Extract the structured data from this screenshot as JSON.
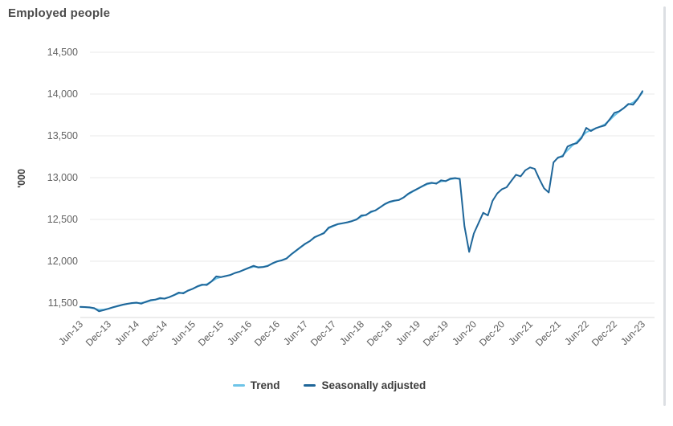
{
  "page": {
    "title": "Employed people"
  },
  "chart_data": {
    "type": "line",
    "title": "Employed people",
    "xlabel": "",
    "ylabel": "'000",
    "grid": true,
    "legend_position": "bottom",
    "frequency": "monthly",
    "x_start": "Jun-13",
    "x_end": "Jun-23",
    "ylim": [
      11250,
      14650
    ],
    "ytick_values": [
      11500,
      12000,
      12500,
      13000,
      13500,
      14000,
      14500
    ],
    "ytick_labels": [
      "11,500",
      "12,000",
      "12,500",
      "13,000",
      "13,500",
      "14,000",
      "14,500"
    ],
    "xtick_labels": [
      "Jun-13",
      "Dec-13",
      "Jun-14",
      "Dec-14",
      "Jun-15",
      "Dec-15",
      "Jun-16",
      "Dec-16",
      "Jun-17",
      "Dec-17",
      "Jun-18",
      "Dec-18",
      "Jun-19",
      "Dec-19",
      "Jun-20",
      "Dec-20",
      "Jun-21",
      "Dec-21",
      "Jun-22",
      "Dec-22",
      "Jun-23"
    ],
    "xtick_month_interval": 6,
    "series": [
      {
        "name": "Trend",
        "color": "#6ec4e8",
        "values": [
          11452,
          11449,
          11444,
          11434,
          11420,
          11422,
          11432,
          11447,
          11462,
          11477,
          11489,
          11497,
          11501,
          11502,
          11511,
          11527,
          11539,
          11551,
          11556,
          11571,
          11593,
          11614,
          11625,
          11646,
          11670,
          11695,
          11713,
          11726,
          11757,
          11792,
          11810,
          11823,
          11837,
          11859,
          11877,
          11897,
          11919,
          11934,
          11930,
          11933,
          11947,
          11972,
          11995,
          12013,
          12035,
          12080,
          12121,
          12164,
          12205,
          12241,
          12283,
          12311,
          12341,
          12393,
          12419,
          12441,
          12453,
          12465,
          12481,
          12504,
          12533,
          12558,
          12584,
          12610,
          12644,
          12681,
          12706,
          12721,
          12735,
          12763,
          12800,
          12834,
          12864,
          12894,
          12920,
          12933,
          12935,
          12954,
          12962,
          12980,
          12990,
          12988,
          null,
          null,
          null,
          null,
          null,
          null,
          null,
          null,
          null,
          null,
          null,
          null,
          null,
          null,
          null,
          null,
          null,
          null,
          null,
          null,
          13235,
          13268,
          13328,
          13383,
          13428,
          13488,
          13542,
          13568,
          13589,
          13611,
          13639,
          13688,
          13742,
          13788,
          13833,
          13874,
          13898,
          13948,
          14018
        ]
      },
      {
        "name": "Seasonally adjusted",
        "color": "#1f6699",
        "values": [
          11455,
          11452,
          11448,
          11438,
          11401,
          11415,
          11432,
          11450,
          11465,
          11480,
          11490,
          11500,
          11505,
          11492,
          11515,
          11535,
          11540,
          11560,
          11552,
          11570,
          11595,
          11625,
          11615,
          11650,
          11670,
          11700,
          11720,
          11715,
          11758,
          11818,
          11810,
          11822,
          11835,
          11860,
          11875,
          11900,
          11922,
          11945,
          11925,
          11930,
          11942,
          11975,
          11998,
          12010,
          12032,
          12082,
          12125,
          12168,
          12210,
          12240,
          12288,
          12312,
          12335,
          12402,
          12425,
          12445,
          12455,
          12465,
          12480,
          12500,
          12548,
          12552,
          12592,
          12608,
          12645,
          12685,
          12712,
          12725,
          12732,
          12762,
          12808,
          12838,
          12868,
          12898,
          12928,
          12938,
          12928,
          12968,
          12958,
          12988,
          12995,
          12985,
          12420,
          12112,
          12332,
          12455,
          12580,
          12548,
          12722,
          12812,
          12862,
          12885,
          12962,
          13035,
          13015,
          13088,
          13122,
          13105,
          12982,
          12872,
          12822,
          13182,
          13242,
          13255,
          13372,
          13398,
          13412,
          13475,
          13595,
          13558,
          13590,
          13610,
          13625,
          13698,
          13775,
          13792,
          13832,
          13882,
          13872,
          13942,
          14035
        ]
      }
    ]
  }
}
